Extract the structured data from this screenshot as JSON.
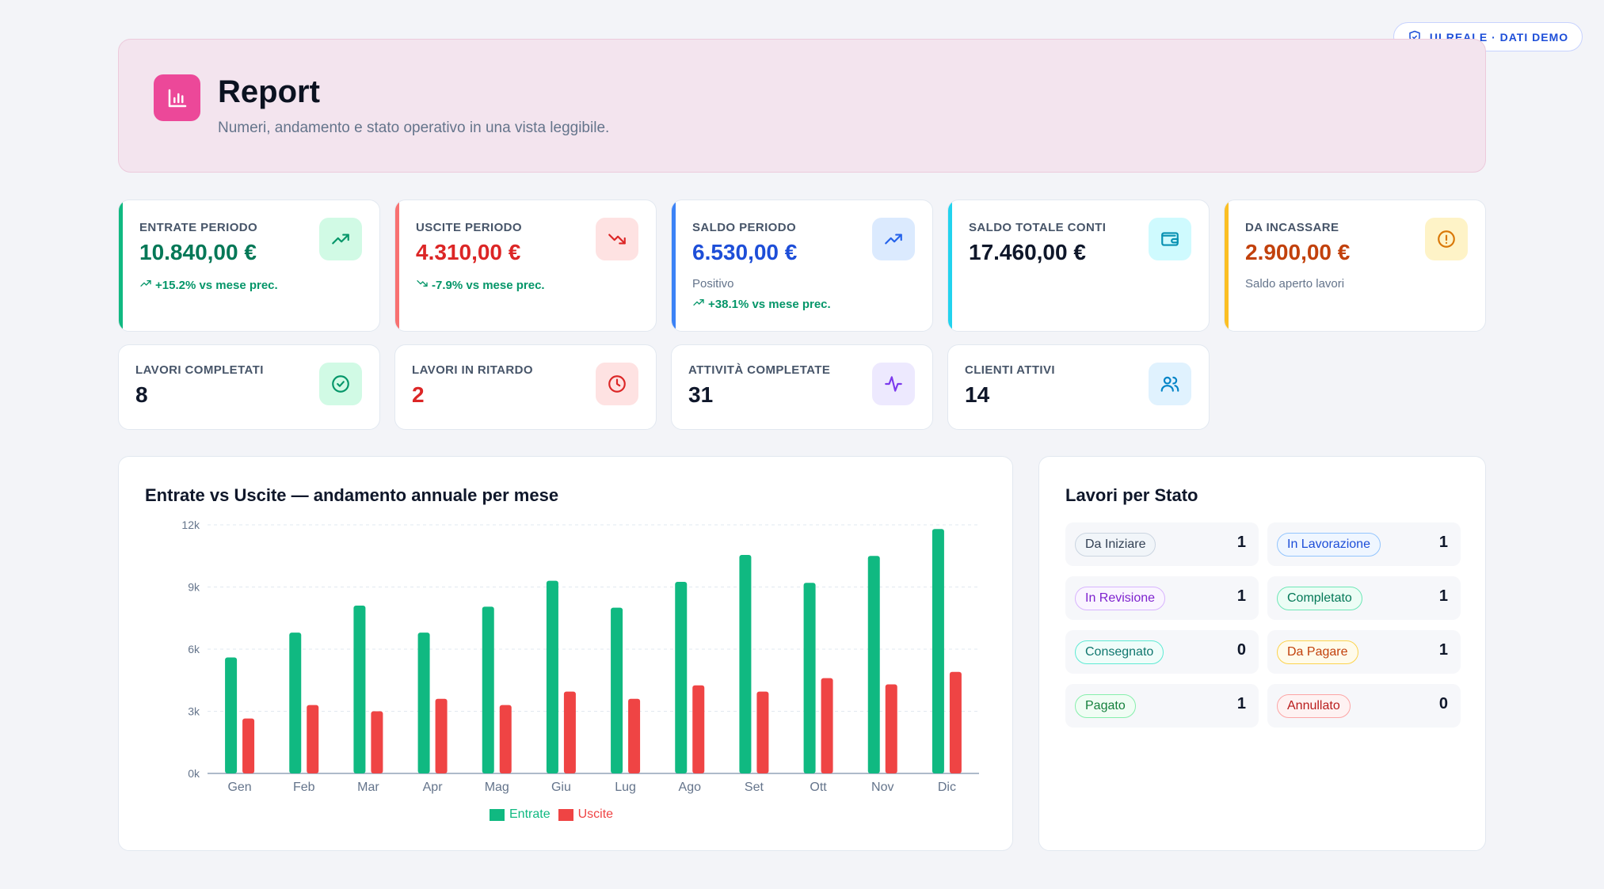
{
  "top_badge": {
    "label": "UI REALE · DATI DEMO"
  },
  "header": {
    "title": "Report",
    "subtitle": "Numeri, andamento e stato operativo in una vista leggibile."
  },
  "kpis": [
    {
      "label": "ENTRATE PERIODO",
      "value": "10.840,00 €",
      "trend": "+15.2% vs mese prec.",
      "color": "#047857",
      "accent": "#10b981",
      "icon": "trending-up-icon",
      "icon_bg": "#d1fae5",
      "icon_color": "#059669"
    },
    {
      "label": "USCITE PERIODO",
      "value": "4.310,00 €",
      "trend": "-7.9% vs mese prec.",
      "color": "#dc2626",
      "accent": "#f87171",
      "icon": "trending-down-icon",
      "icon_bg": "#fee2e2",
      "icon_color": "#dc2626"
    },
    {
      "label": "SALDO PERIODO",
      "value": "6.530,00 €",
      "note": "Positivo",
      "trend": "+38.1% vs mese prec.",
      "color": "#1d4ed8",
      "accent": "#3b82f6",
      "icon": "trending-up-icon",
      "icon_bg": "#dbeafe",
      "icon_color": "#2563eb"
    },
    {
      "label": "SALDO TOTALE CONTI",
      "value": "17.460,00 €",
      "color": "#0f172a",
      "accent": "#22d3ee",
      "icon": "wallet-icon",
      "icon_bg": "#cffafe",
      "icon_color": "#0891b2"
    },
    {
      "label": "DA INCASSARE",
      "value": "2.900,00 €",
      "note": "Saldo aperto lavori",
      "color": "#c2410c",
      "accent": "#fbbf24",
      "icon": "alert-circle-icon",
      "icon_bg": "#fef3c7",
      "icon_color": "#d97706"
    }
  ],
  "mini_kpis": [
    {
      "label": "LAVORI COMPLETATI",
      "value": "8",
      "color": "#0f172a",
      "icon": "check-circle-icon",
      "icon_bg": "#d1fae5",
      "icon_color": "#059669"
    },
    {
      "label": "LAVORI IN RITARDO",
      "value": "2",
      "color": "#dc2626",
      "icon": "clock-icon",
      "icon_bg": "#fee2e2",
      "icon_color": "#dc2626"
    },
    {
      "label": "ATTIVITÀ COMPLETATE",
      "value": "31",
      "color": "#0f172a",
      "icon": "activity-icon",
      "icon_bg": "#ede9fe",
      "icon_color": "#7c3aed"
    },
    {
      "label": "CLIENTI ATTIVI",
      "value": "14",
      "color": "#0f172a",
      "icon": "users-icon",
      "icon_bg": "#e0f2fe",
      "icon_color": "#0284c7"
    }
  ],
  "chart_panel": {
    "title": "Entrate vs Uscite — andamento annuale per mese"
  },
  "chart_data": {
    "type": "bar",
    "title": "Entrate vs Uscite — andamento annuale per mese",
    "categories": [
      "Gen",
      "Feb",
      "Mar",
      "Apr",
      "Mag",
      "Giu",
      "Lug",
      "Ago",
      "Set",
      "Ott",
      "Nov",
      "Dic"
    ],
    "series": [
      {
        "name": "Entrate",
        "color": "#10b981",
        "values": [
          5600,
          6800,
          8100,
          6800,
          8050,
          9300,
          8000,
          9250,
          10550,
          9200,
          10500,
          11800
        ]
      },
      {
        "name": "Uscite",
        "color": "#ef4444",
        "values": [
          2650,
          3300,
          3000,
          3600,
          3300,
          3950,
          3600,
          4250,
          3950,
          4600,
          4300,
          4900
        ]
      }
    ],
    "y_ticks": [
      "0k",
      "3k",
      "6k",
      "9k",
      "12k"
    ],
    "ylim": [
      0,
      12000
    ],
    "grid": true,
    "legend": "bottom-center"
  },
  "status_panel": {
    "title": "Lavori per Stato",
    "items": [
      {
        "label": "Da Iniziare",
        "count": "1",
        "fg": "#334155",
        "bg": "#f1f5f9",
        "border": "#cbd5e1"
      },
      {
        "label": "In Lavorazione",
        "count": "1",
        "fg": "#1d4ed8",
        "bg": "#eff6ff",
        "border": "#93c5fd"
      },
      {
        "label": "In Revisione",
        "count": "1",
        "fg": "#7e22ce",
        "bg": "#faf5ff",
        "border": "#d8b4fe"
      },
      {
        "label": "Completato",
        "count": "1",
        "fg": "#047857",
        "bg": "#ecfdf5",
        "border": "#6ee7b7"
      },
      {
        "label": "Consegnato",
        "count": "0",
        "fg": "#0f766e",
        "bg": "#f0fdfa",
        "border": "#5eead4"
      },
      {
        "label": "Da Pagare",
        "count": "1",
        "fg": "#c2410c",
        "bg": "#fffbeb",
        "border": "#fcd34d"
      },
      {
        "label": "Pagato",
        "count": "1",
        "fg": "#15803d",
        "bg": "#f0fdf4",
        "border": "#86efac"
      },
      {
        "label": "Annullato",
        "count": "0",
        "fg": "#b91c1c",
        "bg": "#fef2f2",
        "border": "#fca5a5"
      }
    ]
  }
}
